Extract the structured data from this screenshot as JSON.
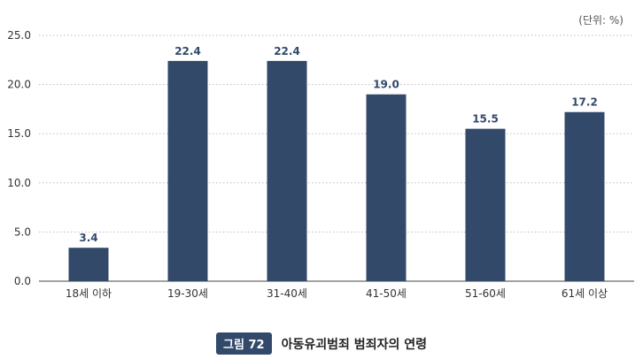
{
  "unit_note": "(단위: %)",
  "caption": {
    "figure_label": "그림 72",
    "title": "아동유괴범죄 범죄자의 연령"
  },
  "colors": {
    "bar": "#33496a",
    "grid": "#bdbdbd",
    "axis": "#444444"
  },
  "chart_data": {
    "type": "bar",
    "categories": [
      "18세 이하",
      "19-30세",
      "31-40세",
      "41-50세",
      "51-60세",
      "61세 이상"
    ],
    "values": [
      3.4,
      22.4,
      22.4,
      19.0,
      15.5,
      17.2
    ],
    "value_labels": [
      "3.4",
      "22.4",
      "22.4",
      "19.0",
      "15.5",
      "17.2"
    ],
    "y_ticks": [
      "0.0",
      "5.0",
      "10.0",
      "15.0",
      "20.0",
      "25.0"
    ],
    "ylim": [
      0,
      25
    ],
    "grid": true,
    "title": "",
    "xlabel": "",
    "ylabel": ""
  }
}
